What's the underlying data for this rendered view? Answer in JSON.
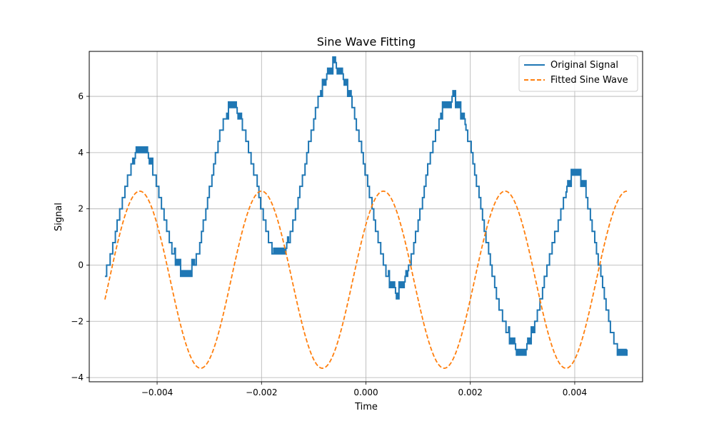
{
  "chart_data": {
    "type": "line",
    "title": "Sine Wave Fitting",
    "xlabel": "Time",
    "ylabel": "Signal",
    "xlim": [
      -0.0053,
      0.0053
    ],
    "ylim": [
      -4.15,
      7.6
    ],
    "x_ticks": [
      -0.004,
      -0.002,
      0.0,
      0.002,
      0.004
    ],
    "x_tick_labels": [
      "−0.004",
      "−0.002",
      "0.000",
      "0.002",
      "0.004"
    ],
    "y_ticks": [
      -4,
      -2,
      0,
      2,
      4,
      6
    ],
    "y_tick_labels": [
      "−4",
      "−2",
      "0",
      "2",
      "4",
      "6"
    ],
    "grid": true,
    "legend_position": "top-right",
    "colors": {
      "original": "#1f77b4",
      "fitted": "#ff7f0e"
    },
    "series": [
      {
        "name": "Original Signal",
        "style": "solid",
        "color": "#1f77b4",
        "x": [
          -0.005,
          -0.0049,
          -0.0048,
          -0.0047,
          -0.0046,
          -0.0045,
          -0.0044,
          -0.0043,
          -0.0042,
          -0.0041,
          -0.004,
          -0.0039,
          -0.0038,
          -0.0037,
          -0.0036,
          -0.0035,
          -0.0034,
          -0.0033,
          -0.0032,
          -0.0031,
          -0.003,
          -0.0029,
          -0.0028,
          -0.0027,
          -0.0026,
          -0.0025,
          -0.0024,
          -0.0023,
          -0.0022,
          -0.0021,
          -0.002,
          -0.0019,
          -0.0018,
          -0.0017,
          -0.0016,
          -0.0015,
          -0.0014,
          -0.0013,
          -0.0012,
          -0.0011,
          -0.001,
          -0.0009,
          -0.0008,
          -0.0007,
          -0.0006,
          -0.0005,
          -0.0004,
          -0.0003,
          -0.0002,
          -0.0001,
          0.0,
          0.0001,
          0.0002,
          0.0003,
          0.0004,
          0.0005,
          0.0006,
          0.0007,
          0.0008,
          0.0009,
          0.001,
          0.0011,
          0.0012,
          0.0013,
          0.0014,
          0.0015,
          0.0016,
          0.0017,
          0.0018,
          0.0019,
          0.002,
          0.0021,
          0.0022,
          0.0023,
          0.0024,
          0.0025,
          0.0026,
          0.0027,
          0.0028,
          0.0029,
          0.003,
          0.0031,
          0.0032,
          0.0033,
          0.0034,
          0.0035,
          0.0036,
          0.0037,
          0.0038,
          0.0039,
          0.004,
          0.0041,
          0.0042,
          0.0043,
          0.0044,
          0.0045,
          0.0046,
          0.0047,
          0.0048,
          0.0049,
          0.005
        ],
        "y": [
          -0.39,
          0.29,
          1.14,
          2.0,
          2.82,
          3.45,
          3.88,
          4.03,
          3.88,
          3.45,
          2.85,
          2.01,
          1.14,
          0.41,
          -0.09,
          -0.38,
          -0.4,
          -0.09,
          0.6,
          1.58,
          2.62,
          3.67,
          4.61,
          5.22,
          5.49,
          5.46,
          5.22,
          4.54,
          3.78,
          3.0,
          2.0,
          1.19,
          0.57,
          0.36,
          0.38,
          0.66,
          1.43,
          2.3,
          3.22,
          4.26,
          5.13,
          5.96,
          6.43,
          6.87,
          7.08,
          6.78,
          6.43,
          5.96,
          5.13,
          4.26,
          3.2,
          2.22,
          1.2,
          0.36,
          -0.4,
          -0.93,
          -1.05,
          -0.81,
          -0.32,
          0.57,
          1.45,
          2.56,
          3.59,
          4.45,
          5.1,
          5.59,
          5.78,
          5.83,
          5.49,
          4.93,
          4.24,
          3.16,
          2.11,
          0.97,
          -0.06,
          -1.05,
          -1.76,
          -2.38,
          -2.87,
          -3.07,
          -3.15,
          -2.93,
          -2.37,
          -1.64,
          -0.74,
          0.12,
          0.95,
          1.59,
          2.34,
          2.9,
          3.2,
          3.01,
          2.6,
          1.67,
          0.77,
          -0.37,
          -1.47,
          -2.38,
          -2.99,
          -3.11,
          -3.15
        ],
        "y_comment": ""
      },
      {
        "name": "Fitted Sine Wave",
        "style": "dashed",
        "color": "#ff7f0e",
        "amplitude": 3.15,
        "offset": -0.52,
        "period": 0.002333,
        "phase_peak_x": 0.000333,
        "x_range": [
          -0.005,
          0.005
        ]
      }
    ]
  }
}
